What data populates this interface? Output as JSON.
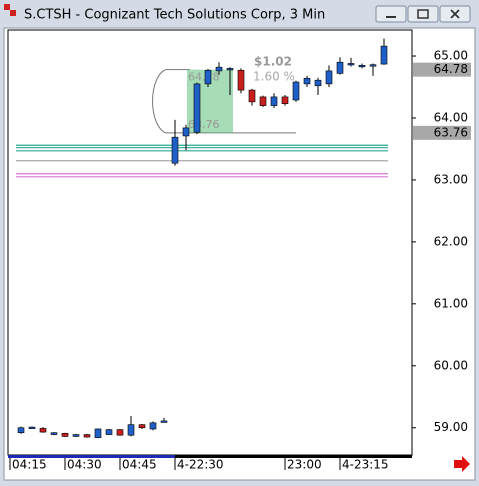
{
  "chart_data": {
    "type": "candlestick",
    "title": "S.CTSH - Cognizant Tech Solutions Corp, 3 Min",
    "categories": [
      "04:15",
      null,
      null,
      null,
      null,
      "04:30",
      null,
      null,
      null,
      null,
      "04:45",
      null,
      null,
      null,
      null,
      "4-22:30",
      null,
      null,
      null,
      null,
      null,
      null,
      null,
      null,
      null,
      "23:00",
      null,
      null,
      null,
      null,
      "4-23:15",
      null,
      null,
      null
    ],
    "open": [
      58.92,
      59.0,
      58.99,
      58.89,
      58.91,
      58.86,
      58.89,
      58.84,
      58.89,
      58.97,
      58.88,
      59.05,
      58.98,
      59.1,
      63.27,
      63.71,
      63.77,
      64.55,
      64.76,
      64.78,
      64.77,
      64.45,
      64.34,
      64.2,
      64.34,
      64.29,
      64.55,
      64.52,
      64.55,
      64.72,
      64.86,
      64.84,
      64.84,
      64.87
    ],
    "high": [
      59.02,
      59.02,
      59.01,
      58.93,
      58.92,
      58.9,
      58.9,
      58.99,
      58.98,
      58.98,
      59.19,
      59.06,
      59.1,
      59.16,
      63.97,
      63.89,
      64.57,
      64.79,
      64.9,
      64.82,
      64.8,
      64.47,
      64.36,
      64.4,
      64.37,
      64.6,
      64.68,
      64.65,
      64.85,
      64.98,
      64.97,
      64.88,
      64.88,
      65.28
    ],
    "low": [
      58.9,
      58.99,
      58.92,
      58.88,
      58.85,
      58.85,
      58.84,
      58.83,
      58.88,
      58.87,
      58.86,
      58.98,
      58.96,
      59.09,
      63.23,
      63.48,
      63.74,
      64.5,
      64.7,
      64.37,
      64.4,
      64.2,
      64.18,
      64.16,
      64.2,
      64.26,
      64.5,
      64.37,
      64.5,
      64.7,
      64.83,
      64.8,
      64.68,
      64.86
    ],
    "close": [
      59.0,
      59.01,
      58.93,
      58.92,
      58.86,
      58.89,
      58.85,
      58.98,
      58.97,
      58.88,
      59.05,
      59.0,
      59.08,
      59.11,
      63.69,
      63.84,
      64.55,
      64.77,
      64.82,
      64.8,
      64.45,
      64.26,
      64.2,
      64.34,
      64.23,
      64.58,
      64.64,
      64.61,
      64.76,
      64.9,
      64.88,
      64.85,
      64.86,
      65.16
    ],
    "up_color": "#1f5fc8",
    "down_color": "#c8201e",
    "ylim": [
      58.56,
      65.42
    ],
    "yticks": [
      {
        "value": 65,
        "label": "65.00"
      },
      {
        "value": 64,
        "label": "64.00"
      },
      {
        "value": 63,
        "label": "63.00"
      },
      {
        "value": 62,
        "label": "62.00"
      },
      {
        "value": 61,
        "label": "61.00"
      },
      {
        "value": 60,
        "label": "60.00"
      },
      {
        "value": 59,
        "label": "59.00"
      }
    ],
    "price_markers": [
      64.78,
      63.76
    ],
    "levels": [
      {
        "color": "#2aa894",
        "values": [
          63.56,
          63.52,
          63.47
        ]
      },
      {
        "color": "#a8a8a8",
        "values": [
          63.31
        ]
      },
      {
        "color": "#d77ad0",
        "values": [
          63.1,
          63.05
        ]
      }
    ],
    "measure": {
      "high": 64.78,
      "low": 63.76,
      "change": "$1.02",
      "percent": "1.60 %"
    }
  }
}
